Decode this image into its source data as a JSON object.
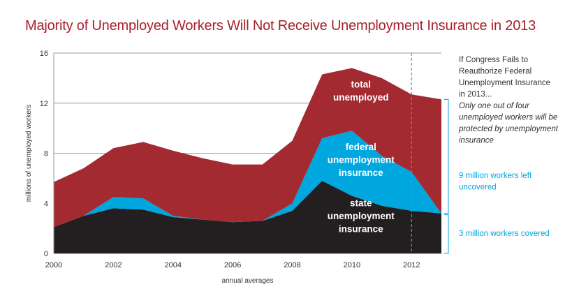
{
  "chart_data": {
    "type": "area",
    "stacked": true,
    "title": "Majority of Unemployed Workers Will Not Receive Unemployment Insurance in 2013",
    "xlabel": "annual averages",
    "ylabel": "millions of unemployed workers",
    "x": [
      2000,
      2001,
      2002,
      2003,
      2004,
      2005,
      2006,
      2007,
      2008,
      2009,
      2010,
      2011,
      2012,
      2013
    ],
    "x_ticks": [
      "2000",
      "2002",
      "2004",
      "2006",
      "2008",
      "2010",
      "2012"
    ],
    "y_ticks": [
      "0",
      "4",
      "8",
      "12",
      "16"
    ],
    "xlim": [
      2000,
      2013
    ],
    "ylim": [
      0,
      16
    ],
    "grid": true,
    "reference_line": 2012,
    "series": [
      {
        "label_lines": [
          "state",
          "unemployment",
          "insurance"
        ],
        "color": "#231f20",
        "values": [
          2.1,
          3.0,
          3.6,
          3.5,
          2.9,
          2.7,
          2.5,
          2.6,
          3.4,
          5.8,
          4.6,
          3.8,
          3.4,
          3.2
        ]
      },
      {
        "label_lines": [
          "federal",
          "unemployment",
          "insurance"
        ],
        "color": "#00a6de",
        "values": [
          0.0,
          0.0,
          0.9,
          0.9,
          0.1,
          0.0,
          0.0,
          0.0,
          0.6,
          3.4,
          5.2,
          4.0,
          3.1,
          0.0
        ]
      },
      {
        "label_lines": [
          "total",
          "unemployed"
        ],
        "color": "#a32a30",
        "values": [
          3.6,
          3.8,
          3.9,
          4.5,
          5.2,
          4.9,
          4.6,
          4.5,
          5.0,
          5.1,
          5.0,
          6.2,
          6.2,
          9.1
        ]
      }
    ],
    "annotation": {
      "heading_lines": [
        "If Congress Fails to",
        "Reauthorize Federal",
        "Unemployment Insurance",
        "in 2013..."
      ],
      "italic_lines": [
        "Only one out of four",
        "unemployed workers will be",
        "protected by unemployment",
        "insurance"
      ],
      "uncovered_lines": [
        "9 million workers left",
        "uncovered"
      ],
      "covered_lines": [
        "3 million workers covered"
      ]
    },
    "colors": {
      "title": "#a8202d",
      "annotation_heading": "#333333",
      "annotation_blue": "#00a6de",
      "bracket": "#00a6de",
      "grid": "#9a9a9a",
      "reference_line": "#5b8fc9"
    }
  }
}
